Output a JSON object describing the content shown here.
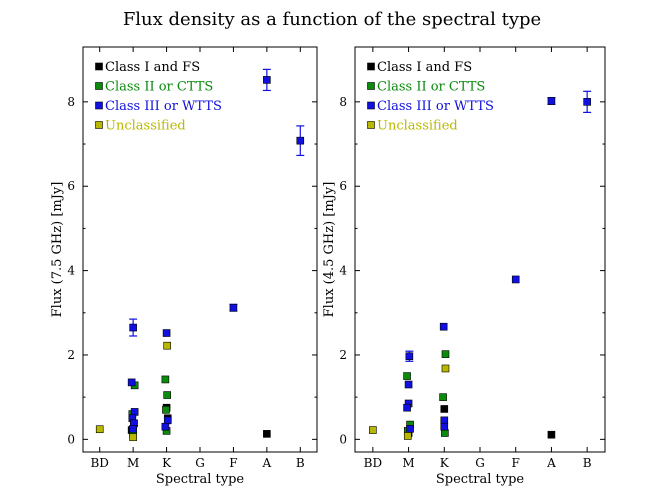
{
  "figure": {
    "title": "Flux density as a function of the spectral type"
  },
  "chart_data": [
    {
      "type": "scatter",
      "xlabel": "Spectral type",
      "ylabel": "Flux (7.5 GHz) [mJy]",
      "categories": [
        "BD",
        "M",
        "K",
        "G",
        "F",
        "A",
        "B"
      ],
      "ylim": [
        -0.3,
        9.3
      ],
      "yticks": [
        0,
        2,
        4,
        6,
        8
      ],
      "ytick_labels": [
        "0",
        "2",
        "4",
        "6",
        "8"
      ],
      "legend_position": "top-left",
      "series": [
        {
          "name": "Class I and FS",
          "color": "#000000",
          "points": [
            {
              "x": "M",
              "y": 0.1
            },
            {
              "x": "M",
              "y": 0.22
            },
            {
              "x": "K",
              "y": 0.75
            },
            {
              "x": "K",
              "y": 0.5
            },
            {
              "x": "A",
              "y": 0.13
            }
          ]
        },
        {
          "name": "Class II or CTTS",
          "color": "#0b8a0b",
          "points": [
            {
              "x": "M",
              "y": 1.28
            },
            {
              "x": "M",
              "y": 0.6
            },
            {
              "x": "M",
              "y": 0.38
            },
            {
              "x": "M",
              "y": 0.18
            },
            {
              "x": "K",
              "y": 1.42
            },
            {
              "x": "K",
              "y": 1.05
            },
            {
              "x": "K",
              "y": 0.7
            },
            {
              "x": "K",
              "y": 0.2
            }
          ]
        },
        {
          "name": "Class III or WTTS",
          "color": "#1010e0",
          "points": [
            {
              "x": "M",
              "y": 2.65,
              "err": 0.2
            },
            {
              "x": "M",
              "y": 1.35
            },
            {
              "x": "M",
              "y": 0.65
            },
            {
              "x": "M",
              "y": 0.5
            },
            {
              "x": "M",
              "y": 0.38
            },
            {
              "x": "M",
              "y": 0.25
            },
            {
              "x": "K",
              "y": 2.52
            },
            {
              "x": "K",
              "y": 0.45
            },
            {
              "x": "K",
              "y": 0.3
            },
            {
              "x": "F",
              "y": 3.12,
              "err": 0.08
            },
            {
              "x": "A",
              "y": 8.52,
              "err": 0.25
            },
            {
              "x": "B",
              "y": 7.08,
              "err": 0.35
            }
          ]
        },
        {
          "name": "Unclassified",
          "color": "#b8b800",
          "points": [
            {
              "x": "BD",
              "y": 0.24
            },
            {
              "x": "M",
              "y": 0.05
            },
            {
              "x": "K",
              "y": 2.22
            }
          ]
        }
      ]
    },
    {
      "type": "scatter",
      "xlabel": "Spectral type",
      "ylabel": "Flux (4.5 GHz) [mJy]",
      "categories": [
        "BD",
        "M",
        "K",
        "G",
        "F",
        "A",
        "B"
      ],
      "ylim": [
        -0.3,
        9.3
      ],
      "yticks": [
        0,
        2,
        4,
        6,
        8
      ],
      "ytick_labels": [
        "0",
        "2",
        "4",
        "6",
        "8"
      ],
      "legend_position": "top-left",
      "series": [
        {
          "name": "Class I and FS",
          "color": "#000000",
          "points": [
            {
              "x": "M",
              "y": 0.15
            },
            {
              "x": "K",
              "y": 0.72
            },
            {
              "x": "A",
              "y": 0.11
            }
          ]
        },
        {
          "name": "Class II or CTTS",
          "color": "#0b8a0b",
          "points": [
            {
              "x": "M",
              "y": 1.5
            },
            {
              "x": "M",
              "y": 0.35
            },
            {
              "x": "M",
              "y": 0.2
            },
            {
              "x": "K",
              "y": 2.02
            },
            {
              "x": "K",
              "y": 1.0
            },
            {
              "x": "K",
              "y": 0.15
            }
          ]
        },
        {
          "name": "Class III or WTTS",
          "color": "#1010e0",
          "points": [
            {
              "x": "M",
              "y": 1.97,
              "err": 0.12
            },
            {
              "x": "M",
              "y": 1.3
            },
            {
              "x": "M",
              "y": 0.85
            },
            {
              "x": "M",
              "y": 0.75
            },
            {
              "x": "M",
              "y": 0.25
            },
            {
              "x": "K",
              "y": 2.67
            },
            {
              "x": "K",
              "y": 0.45
            },
            {
              "x": "K",
              "y": 0.3
            },
            {
              "x": "F",
              "y": 3.79
            },
            {
              "x": "A",
              "y": 8.02,
              "err": 0.08
            },
            {
              "x": "B",
              "y": 8.0,
              "err": 0.25
            }
          ]
        },
        {
          "name": "Unclassified",
          "color": "#b8b800",
          "points": [
            {
              "x": "BD",
              "y": 0.22
            },
            {
              "x": "M",
              "y": 0.08
            },
            {
              "x": "K",
              "y": 1.68
            }
          ]
        }
      ]
    }
  ]
}
